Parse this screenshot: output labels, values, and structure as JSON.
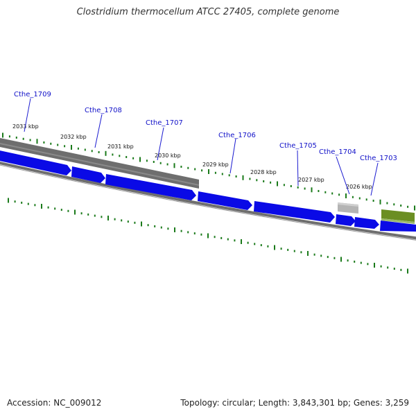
{
  "title": "Clostridium thermocellum ATCC 27405, complete genome",
  "footer": {
    "accession": "Accession: NC_009012",
    "summary": "Topology: circular; Length: 3,843,301 bp; Genes: 3,259"
  },
  "scale_labels": [
    "2033 kbp",
    "2032 kbp",
    "2031 kbp",
    "2030 kbp",
    "2029 kbp",
    "2028 kbp",
    "2027 kbp",
    "2026 kbp"
  ],
  "gene_labels": [
    "Cthe_1709",
    "Cthe_1708",
    "Cthe_1707",
    "Cthe_1706",
    "Cthe_1705",
    "Cthe_1704",
    "Cthe_1703"
  ],
  "colors": {
    "cds": "#0a0ae6",
    "cds_highlight": "#4a4af5",
    "backbone": "#6e6e6e",
    "feature_gray": "#b4b4b4",
    "feature_green": "#6b8e23",
    "tick_green": "#1a7a1a",
    "label_blue": "#1010c8",
    "leader_blue": "#1a1ad0"
  }
}
